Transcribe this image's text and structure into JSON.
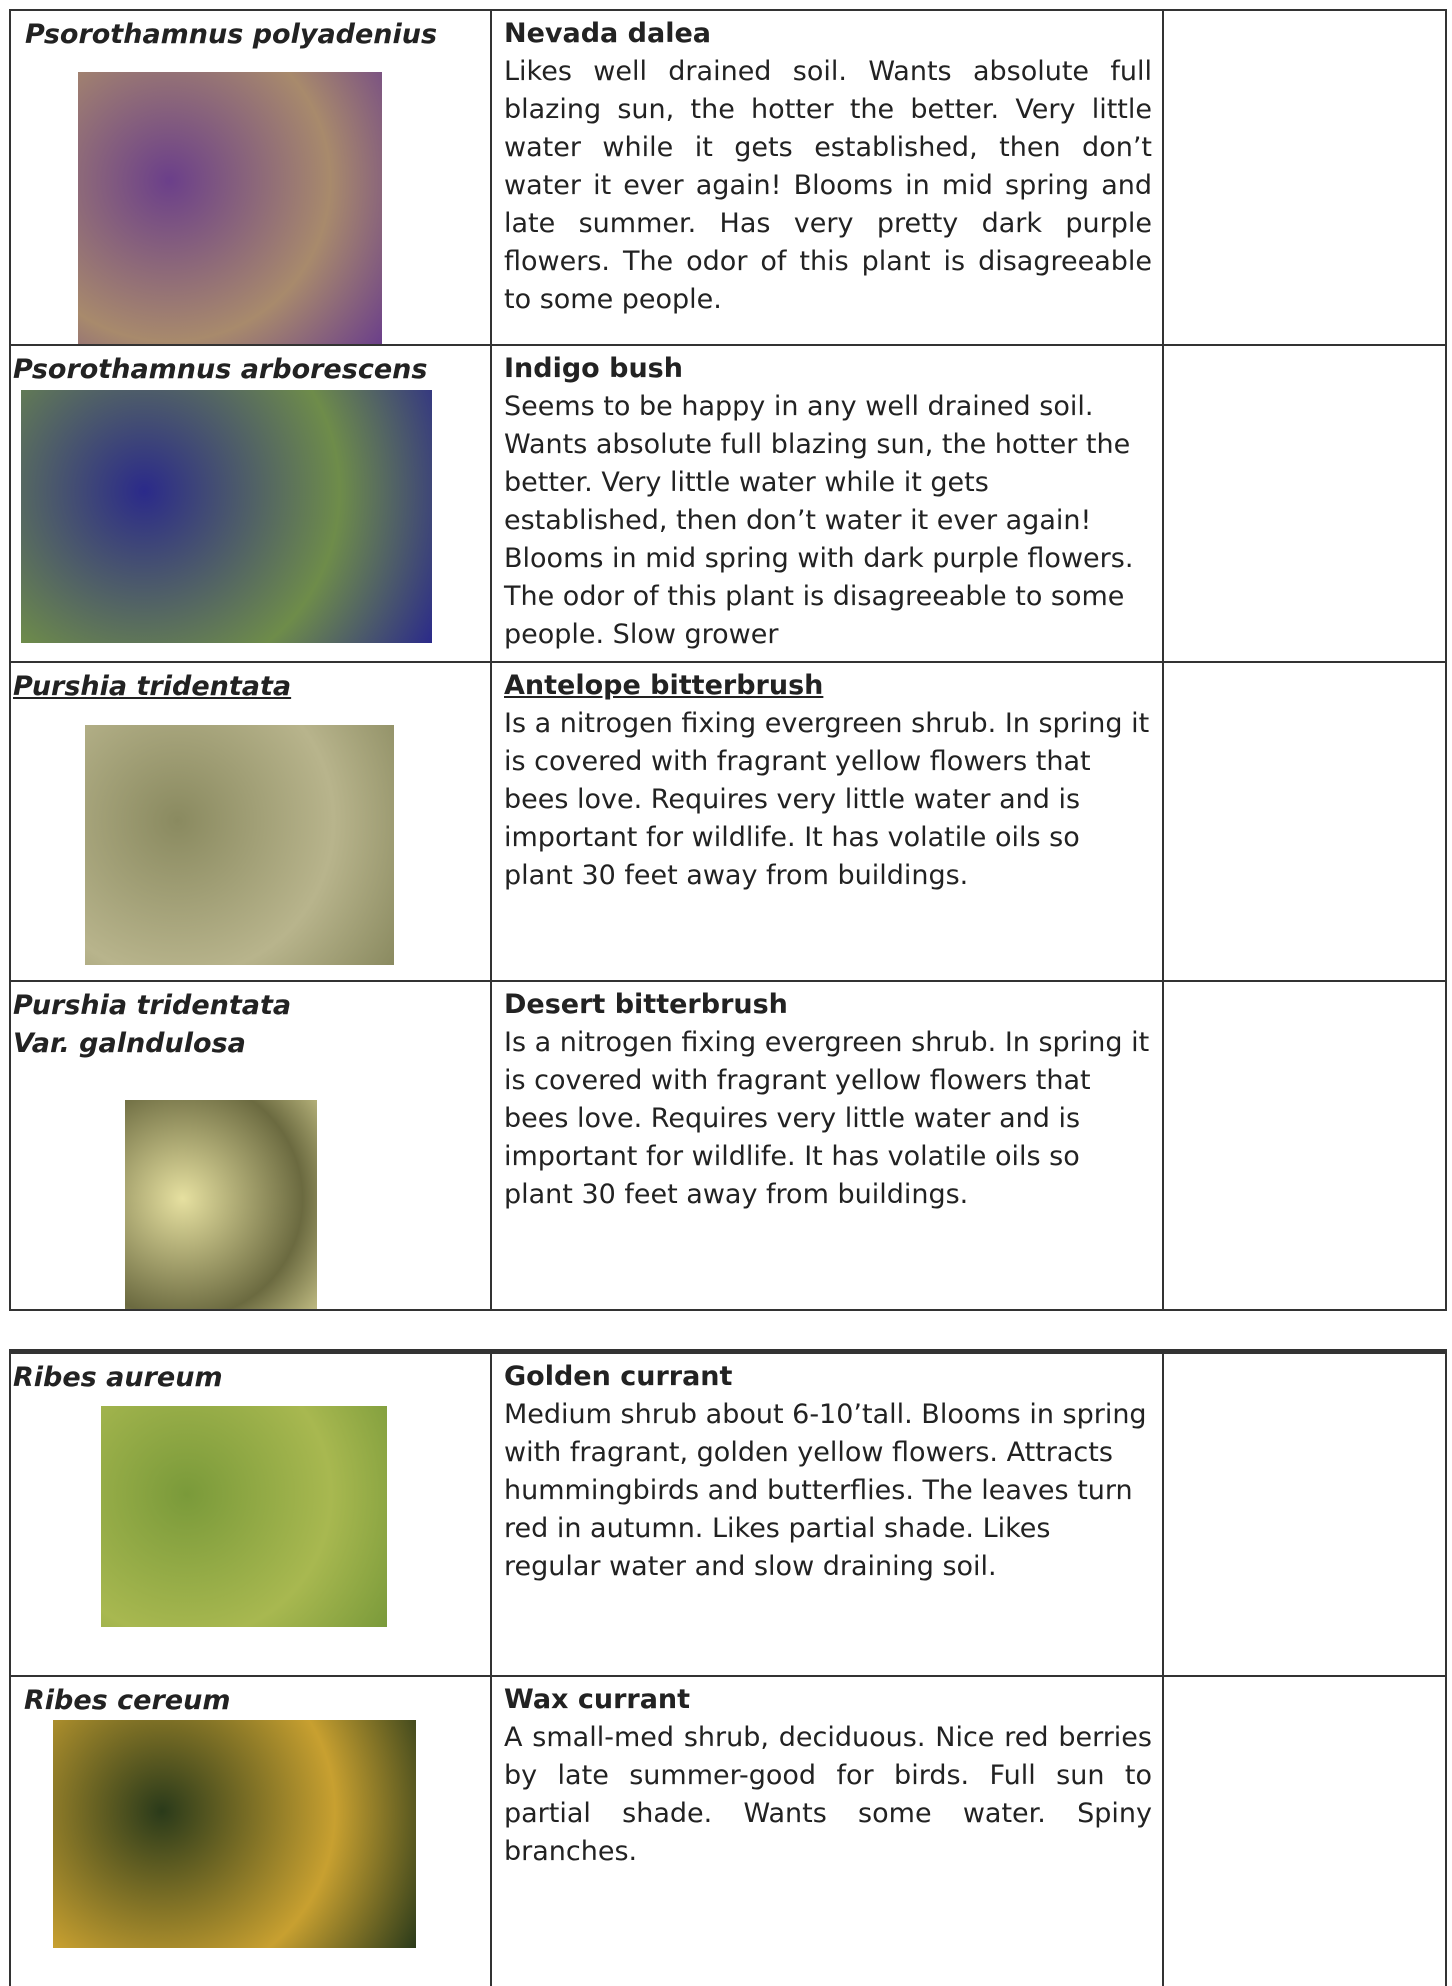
{
  "tables": [
    {
      "rows": [
        {
          "scientific_name": [
            "Psorothamnus polyadenius"
          ],
          "common_name": "Nevada dalea",
          "description": "Likes well drained soil. Wants absolute full blazing sun, the hotter the better. Very little water while it gets established, then don’t water it ever again! Blooms in mid spring and late summer. Has very pretty dark purple flowers. The odor of this plant is disagreeable to some people."
        },
        {
          "scientific_name": [
            "Psorothamnus arborescens"
          ],
          "common_name": "Indigo bush",
          "description": "Seems to be happy in any well drained soil. Wants absolute full blazing sun, the hotter the better. Very little water while it gets established, then don’t water it ever again! Blooms in mid spring with dark purple flowers. The odor of this plant is disagreeable to some people. Slow grower"
        },
        {
          "scientific_name": [
            "Purshia tridentata"
          ],
          "common_name": "Antelope bitterbrush",
          "description": "Is a nitrogen fixing evergreen shrub. In spring it is covered with fragrant yellow flowers that bees love. Requires very little water and is important for wildlife. It has volatile oils so plant 30 feet away from buildings."
        },
        {
          "scientific_name": [
            "Purshia tridentata",
            "Var.  galndulosa"
          ],
          "common_name": "Desert bitterbrush",
          "description": "Is a nitrogen fixing evergreen shrub. In spring it is covered with fragrant yellow flowers that bees love. Requires very little water and is important for wildlife. It has volatile oils so plant 30 feet away from buildings."
        }
      ]
    },
    {
      "rows": [
        {
          "scientific_name": [
            "Ribes aureum"
          ],
          "common_name": "Golden currant",
          "description": "Medium shrub about 6-10’tall. Blooms in spring with fragrant, golden yellow flowers. Attracts hummingbirds and butterflies. The leaves turn red in autumn. Likes partial shade. Likes regular water and slow draining soil."
        },
        {
          "scientific_name": [
            "Ribes cereum"
          ],
          "common_name": "Wax currant",
          "description": "A small-med shrub, deciduous. Nice red berries by late summer-good for birds. Full sun to partial shade. Wants some water. Spiny branches."
        }
      ]
    }
  ]
}
